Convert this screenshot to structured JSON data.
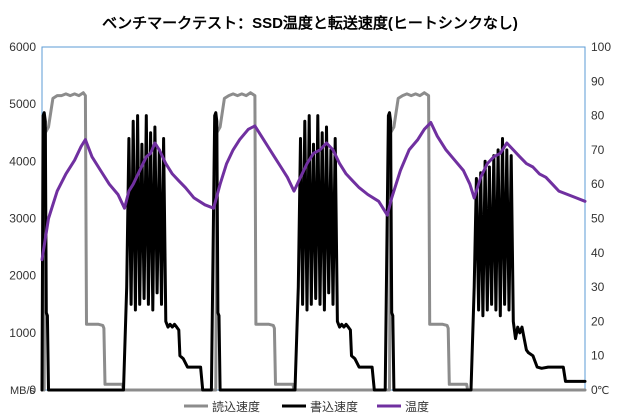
{
  "chart_data": {
    "type": "line",
    "title": "ベンチマークテスト：SSD温度と転送速度(ヒートシンクなし)",
    "y_left": {
      "unit_label": "MB/s",
      "range": [
        0,
        6000
      ],
      "ticks": [
        "0",
        "1000",
        "2000",
        "3000",
        "4000",
        "5000",
        "6000"
      ]
    },
    "y_right": {
      "unit_label": "℃",
      "range": [
        0,
        100
      ],
      "ticks": [
        "0",
        "10",
        "20",
        "30",
        "40",
        "50",
        "60",
        "70",
        "80",
        "90",
        "100"
      ]
    },
    "x_range": [
      0,
      500
    ],
    "grid": false,
    "legend_position": "bottom",
    "series": [
      {
        "name": "読込速度",
        "axis": "left",
        "color": "#8c8c8c",
        "points": [
          [
            0,
            0
          ],
          [
            2,
            0
          ],
          [
            3,
            4500
          ],
          [
            6,
            4600
          ],
          [
            10,
            5100
          ],
          [
            14,
            5150
          ],
          [
            18,
            5150
          ],
          [
            22,
            5180
          ],
          [
            26,
            5150
          ],
          [
            30,
            5180
          ],
          [
            34,
            5150
          ],
          [
            38,
            5200
          ],
          [
            40,
            5150
          ],
          [
            41,
            1150
          ],
          [
            46,
            1150
          ],
          [
            52,
            1150
          ],
          [
            56,
            1130
          ],
          [
            57,
            1080
          ],
          [
            58,
            100
          ],
          [
            64,
            100
          ],
          [
            74,
            100
          ],
          [
            75,
            0
          ],
          [
            83,
            0
          ],
          [
            160,
            0
          ],
          [
            161,
            4500
          ],
          [
            164,
            4600
          ],
          [
            168,
            5100
          ],
          [
            172,
            5150
          ],
          [
            176,
            5180
          ],
          [
            180,
            5150
          ],
          [
            184,
            5180
          ],
          [
            188,
            5150
          ],
          [
            192,
            5200
          ],
          [
            196,
            5150
          ],
          [
            197,
            1150
          ],
          [
            203,
            1150
          ],
          [
            209,
            1150
          ],
          [
            213,
            1130
          ],
          [
            214,
            1080
          ],
          [
            215,
            100
          ],
          [
            221,
            100
          ],
          [
            231,
            100
          ],
          [
            232,
            0
          ],
          [
            240,
            0
          ],
          [
            320,
            0
          ],
          [
            321,
            4500
          ],
          [
            324,
            4600
          ],
          [
            328,
            5100
          ],
          [
            332,
            5150
          ],
          [
            336,
            5180
          ],
          [
            340,
            5150
          ],
          [
            344,
            5180
          ],
          [
            348,
            5150
          ],
          [
            352,
            5200
          ],
          [
            356,
            5150
          ],
          [
            357,
            1150
          ],
          [
            363,
            1150
          ],
          [
            369,
            1150
          ],
          [
            373,
            1130
          ],
          [
            374,
            1080
          ],
          [
            375,
            100
          ],
          [
            381,
            100
          ],
          [
            391,
            100
          ],
          [
            392,
            0
          ],
          [
            400,
            0
          ],
          [
            500,
            0
          ]
        ]
      },
      {
        "name": "書込速度",
        "axis": "left",
        "color": "#000000",
        "points": [
          [
            0,
            0
          ],
          [
            1,
            4800
          ],
          [
            2,
            4850
          ],
          [
            3,
            4700
          ],
          [
            4,
            1350
          ],
          [
            5,
            1300
          ],
          [
            6,
            0
          ],
          [
            75,
            0
          ],
          [
            78,
            1800
          ],
          [
            80,
            4400
          ],
          [
            82,
            1500
          ],
          [
            84,
            4700
          ],
          [
            86,
            1400
          ],
          [
            88,
            4800
          ],
          [
            90,
            1500
          ],
          [
            92,
            4300
          ],
          [
            94,
            1600
          ],
          [
            96,
            4800
          ],
          [
            98,
            1500
          ],
          [
            100,
            4500
          ],
          [
            102,
            1400
          ],
          [
            104,
            4600
          ],
          [
            106,
            1700
          ],
          [
            108,
            4200
          ],
          [
            110,
            1500
          ],
          [
            112,
            4400
          ],
          [
            114,
            1200
          ],
          [
            116,
            1100
          ],
          [
            118,
            1150
          ],
          [
            120,
            1100
          ],
          [
            122,
            1150
          ],
          [
            124,
            1100
          ],
          [
            126,
            1050
          ],
          [
            127,
            600
          ],
          [
            130,
            550
          ],
          [
            134,
            400
          ],
          [
            138,
            400
          ],
          [
            142,
            400
          ],
          [
            146,
            400
          ],
          [
            148,
            0
          ],
          [
            156,
            0
          ],
          [
            159,
            4800
          ],
          [
            160,
            4850
          ],
          [
            161,
            4700
          ],
          [
            162,
            1350
          ],
          [
            163,
            1300
          ],
          [
            164,
            0
          ],
          [
            233,
            0
          ],
          [
            236,
            1800
          ],
          [
            238,
            4400
          ],
          [
            240,
            1500
          ],
          [
            242,
            4700
          ],
          [
            244,
            1400
          ],
          [
            246,
            4800
          ],
          [
            248,
            1500
          ],
          [
            250,
            4300
          ],
          [
            252,
            1600
          ],
          [
            254,
            4800
          ],
          [
            256,
            1500
          ],
          [
            258,
            4500
          ],
          [
            260,
            1400
          ],
          [
            262,
            4600
          ],
          [
            264,
            1700
          ],
          [
            266,
            4200
          ],
          [
            268,
            1500
          ],
          [
            270,
            4400
          ],
          [
            272,
            1200
          ],
          [
            274,
            1100
          ],
          [
            276,
            1150
          ],
          [
            278,
            1100
          ],
          [
            280,
            1150
          ],
          [
            282,
            1100
          ],
          [
            284,
            1050
          ],
          [
            285,
            600
          ],
          [
            288,
            550
          ],
          [
            292,
            400
          ],
          [
            296,
            400
          ],
          [
            300,
            400
          ],
          [
            304,
            400
          ],
          [
            306,
            0
          ],
          [
            316,
            0
          ],
          [
            319,
            4800
          ],
          [
            320,
            4850
          ],
          [
            321,
            4700
          ],
          [
            322,
            1350
          ],
          [
            323,
            1300
          ],
          [
            324,
            0
          ],
          [
            395,
            0
          ],
          [
            398,
            1800
          ],
          [
            400,
            3700
          ],
          [
            402,
            1400
          ],
          [
            404,
            3800
          ],
          [
            406,
            1300
          ],
          [
            408,
            4000
          ],
          [
            410,
            1400
          ],
          [
            412,
            3900
          ],
          [
            414,
            1500
          ],
          [
            416,
            4100
          ],
          [
            418,
            1400
          ],
          [
            420,
            4200
          ],
          [
            422,
            1300
          ],
          [
            424,
            4400
          ],
          [
            426,
            1500
          ],
          [
            428,
            4200
          ],
          [
            430,
            1400
          ],
          [
            432,
            4100
          ],
          [
            434,
            1200
          ],
          [
            436,
            900
          ],
          [
            438,
            1100
          ],
          [
            440,
            1000
          ],
          [
            442,
            1100
          ],
          [
            444,
            900
          ],
          [
            446,
            700
          ],
          [
            448,
            650
          ],
          [
            452,
            600
          ],
          [
            456,
            400
          ],
          [
            460,
            380
          ],
          [
            466,
            400
          ],
          [
            474,
            400
          ],
          [
            480,
            400
          ],
          [
            482,
            150
          ],
          [
            500,
            150
          ]
        ]
      },
      {
        "name": "温度",
        "axis": "right",
        "color": "#7030a0",
        "points": [
          [
            0,
            38
          ],
          [
            6,
            50
          ],
          [
            14,
            58
          ],
          [
            22,
            63
          ],
          [
            30,
            67
          ],
          [
            36,
            71
          ],
          [
            40,
            73
          ],
          [
            46,
            68
          ],
          [
            54,
            64
          ],
          [
            62,
            60
          ],
          [
            70,
            57
          ],
          [
            76,
            53
          ],
          [
            80,
            58
          ],
          [
            84,
            60
          ],
          [
            90,
            64
          ],
          [
            96,
            68
          ],
          [
            100,
            69
          ],
          [
            104,
            72
          ],
          [
            108,
            70
          ],
          [
            114,
            66
          ],
          [
            120,
            63
          ],
          [
            126,
            61
          ],
          [
            132,
            59
          ],
          [
            140,
            56
          ],
          [
            150,
            54
          ],
          [
            158,
            53
          ],
          [
            164,
            60
          ],
          [
            170,
            66
          ],
          [
            176,
            70
          ],
          [
            182,
            73
          ],
          [
            190,
            76
          ],
          [
            196,
            77
          ],
          [
            202,
            74
          ],
          [
            208,
            71
          ],
          [
            214,
            68
          ],
          [
            220,
            65
          ],
          [
            226,
            62
          ],
          [
            232,
            58
          ],
          [
            238,
            62
          ],
          [
            244,
            66
          ],
          [
            250,
            69
          ],
          [
            256,
            70
          ],
          [
            262,
            72
          ],
          [
            268,
            70
          ],
          [
            274,
            66
          ],
          [
            280,
            63
          ],
          [
            286,
            61
          ],
          [
            292,
            59
          ],
          [
            300,
            57
          ],
          [
            310,
            55
          ],
          [
            318,
            51
          ],
          [
            322,
            56
          ],
          [
            330,
            64
          ],
          [
            338,
            70
          ],
          [
            346,
            73
          ],
          [
            352,
            76
          ],
          [
            358,
            78
          ],
          [
            364,
            74
          ],
          [
            372,
            70
          ],
          [
            380,
            67
          ],
          [
            388,
            64
          ],
          [
            394,
            60
          ],
          [
            398,
            56
          ],
          [
            404,
            62
          ],
          [
            410,
            66
          ],
          [
            416,
            68
          ],
          [
            422,
            69
          ],
          [
            428,
            72
          ],
          [
            434,
            70
          ],
          [
            440,
            68
          ],
          [
            446,
            66
          ],
          [
            452,
            65
          ],
          [
            458,
            63
          ],
          [
            464,
            62
          ],
          [
            470,
            60
          ],
          [
            476,
            58
          ],
          [
            484,
            57
          ],
          [
            492,
            56
          ],
          [
            500,
            55
          ]
        ]
      }
    ]
  }
}
